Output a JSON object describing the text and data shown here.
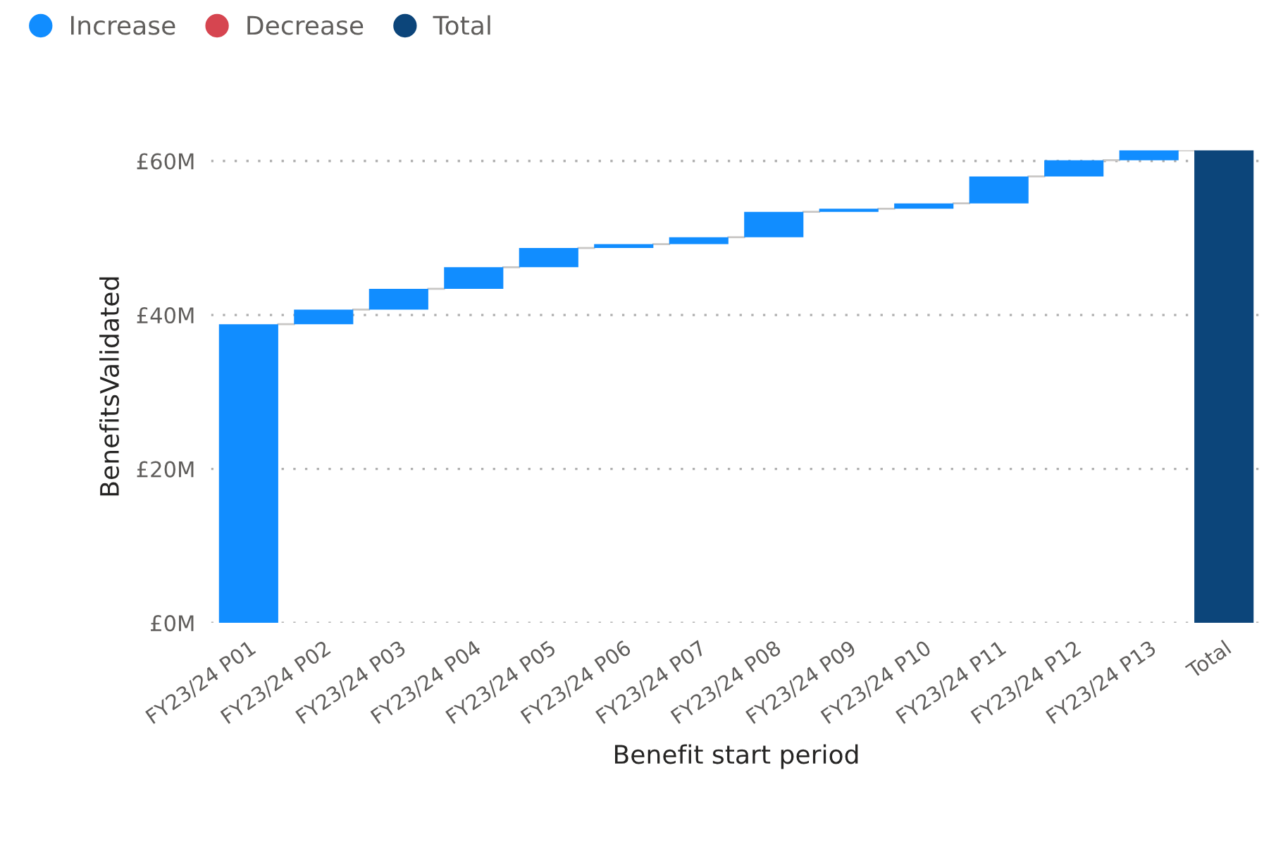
{
  "chart_data": {
    "type": "bar",
    "xlabel": "Benefit start period",
    "ylabel": "BenefitsValidated",
    "categories": [
      "FY23/24 P01",
      "FY23/24 P02",
      "FY23/24 P03",
      "FY23/24 P04",
      "FY23/24 P05",
      "FY23/24 P06",
      "FY23/24 P07",
      "FY23/24 P08",
      "FY23/24 P09",
      "FY23/24 P10",
      "FY23/24 P11",
      "FY23/24 P12",
      "FY23/24 P13",
      "Total"
    ],
    "series": [
      {
        "name": "Increase",
        "color": "#118dff",
        "values": [
          38.8,
          1.9,
          2.7,
          2.8,
          2.5,
          0.5,
          0.9,
          3.3,
          0.4,
          0.7,
          3.5,
          2.1,
          1.3,
          null
        ],
        "base": [
          0,
          38.8,
          40.7,
          43.4,
          46.2,
          48.7,
          49.2,
          50.1,
          53.4,
          53.8,
          54.5,
          58.0,
          60.1,
          null
        ]
      },
      {
        "name": "Decrease",
        "color": "#d64550",
        "values": [
          null,
          null,
          null,
          null,
          null,
          null,
          null,
          null,
          null,
          null,
          null,
          null,
          null,
          null
        ]
      },
      {
        "name": "Total",
        "color": "#0c457a",
        "values": [
          null,
          null,
          null,
          null,
          null,
          null,
          null,
          null,
          null,
          null,
          null,
          null,
          null,
          61.4
        ],
        "base": [
          null,
          null,
          null,
          null,
          null,
          null,
          null,
          null,
          null,
          null,
          null,
          null,
          null,
          0
        ]
      }
    ],
    "ylim": [
      0,
      61.4
    ],
    "yticks": [
      {
        "value": 0,
        "label": "£0M"
      },
      {
        "value": 20,
        "label": "£20M"
      },
      {
        "value": 40,
        "label": "£40M"
      },
      {
        "value": 60,
        "label": "£60M"
      }
    ],
    "grid": "y",
    "legend": "top left"
  }
}
